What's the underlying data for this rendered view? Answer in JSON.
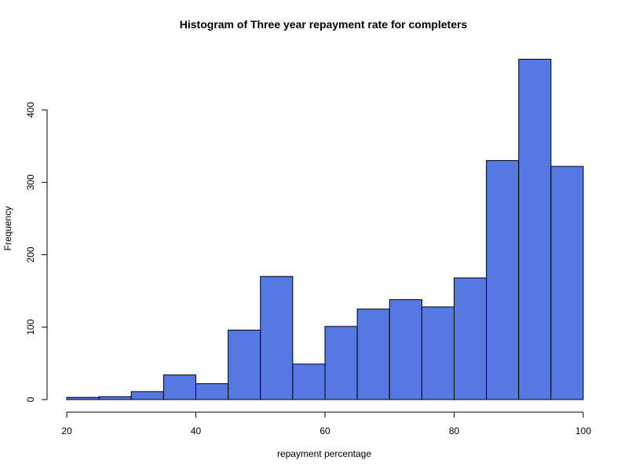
{
  "chart_data": {
    "type": "bar",
    "title": "Histogram of Three year repayment rate for completers",
    "xlabel": "repayment percentage",
    "ylabel": "Frequency",
    "bin_edges": [
      20,
      25,
      30,
      35,
      40,
      45,
      50,
      55,
      60,
      65,
      70,
      75,
      80,
      85,
      90,
      95,
      100
    ],
    "values": [
      3,
      4,
      11,
      34,
      22,
      96,
      170,
      49,
      101,
      125,
      138,
      128,
      168,
      330,
      470,
      322
    ],
    "xlim": [
      20,
      100
    ],
    "ylim": [
      0,
      470
    ],
    "xticks": [
      20,
      40,
      60,
      80,
      100
    ],
    "yticks": [
      0,
      100,
      200,
      300,
      400
    ],
    "bar_color": "#5578E2",
    "grid": false,
    "legend": "none"
  }
}
